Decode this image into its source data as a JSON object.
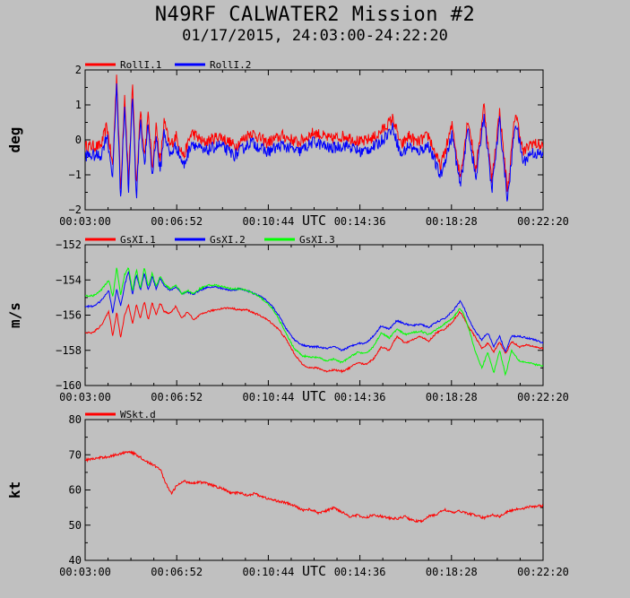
{
  "title": "N49RF CALWATER2 Mission #2",
  "subtitle": "01/17/2015, 24:03:00-24:22:20",
  "chart_data": [
    {
      "type": "line",
      "ylabel": "deg",
      "xlabel": "UTC",
      "ylim": [
        -2,
        2
      ],
      "yticks": [
        "2",
        "1",
        "0",
        "−1",
        "−2"
      ],
      "ytick_values": [
        2,
        1,
        0,
        -1,
        -2
      ],
      "xlim": [
        0,
        1160
      ],
      "xticks": [
        "00:03:00",
        "00:06:52",
        "00:10:44",
        "00:14:36",
        "00:18:28",
        "00:22:20"
      ],
      "grid": false,
      "legend_position": "top-left",
      "noise": 0.17,
      "series": [
        {
          "name": "RollI.1",
          "color": "#ff0000",
          "offset": 0.12,
          "x": [
            0,
            40,
            55,
            70,
            80,
            90,
            100,
            110,
            120,
            130,
            140,
            150,
            160,
            170,
            180,
            190,
            200,
            215,
            230,
            250,
            270,
            300,
            340,
            380,
            420,
            460,
            500,
            540,
            580,
            620,
            660,
            700,
            740,
            780,
            800,
            820,
            840,
            870,
            900,
            930,
            950,
            970,
            990,
            1010,
            1030,
            1050,
            1070,
            1090,
            1110,
            1130,
            1160
          ],
          "y": [
            -0.3,
            -0.3,
            0.3,
            -0.9,
            1.8,
            -1.6,
            1.2,
            -1.3,
            1.4,
            -1.5,
            0.8,
            -0.6,
            0.6,
            -0.9,
            0.3,
            -0.8,
            0.4,
            -0.3,
            0.0,
            -0.6,
            0.1,
            -0.2,
            0.0,
            -0.3,
            0.1,
            -0.2,
            0.0,
            -0.2,
            0.1,
            -0.1,
            0.0,
            -0.2,
            0.0,
            0.5,
            -0.3,
            0.0,
            -0.2,
            0.0,
            -0.9,
            0.3,
            -1.2,
            0.5,
            -1.0,
            0.9,
            -1.3,
            0.7,
            -1.6,
            0.7,
            -0.5,
            -0.2,
            -0.3
          ]
        },
        {
          "name": "RollI.2",
          "color": "#0000ff",
          "offset": -0.15,
          "x": [
            0,
            40,
            55,
            70,
            80,
            90,
            100,
            110,
            120,
            130,
            140,
            150,
            160,
            170,
            180,
            190,
            200,
            215,
            230,
            250,
            270,
            300,
            340,
            380,
            420,
            460,
            500,
            540,
            580,
            620,
            660,
            700,
            740,
            780,
            800,
            820,
            840,
            870,
            900,
            930,
            950,
            970,
            990,
            1010,
            1030,
            1050,
            1070,
            1090,
            1110,
            1130,
            1160
          ],
          "y": [
            -0.3,
            -0.3,
            0.3,
            -0.9,
            1.8,
            -1.6,
            1.2,
            -1.3,
            1.4,
            -1.5,
            0.8,
            -0.6,
            0.6,
            -0.9,
            0.3,
            -0.8,
            0.4,
            -0.3,
            0.0,
            -0.6,
            0.1,
            -0.2,
            0.0,
            -0.3,
            0.1,
            -0.2,
            0.0,
            -0.2,
            0.1,
            -0.1,
            0.0,
            -0.2,
            0.0,
            0.5,
            -0.3,
            0.0,
            -0.2,
            0.0,
            -0.9,
            0.3,
            -1.2,
            0.5,
            -1.0,
            0.9,
            -1.3,
            0.7,
            -1.6,
            0.7,
            -0.5,
            -0.2,
            -0.3
          ]
        }
      ]
    },
    {
      "type": "line",
      "ylabel": "m/s",
      "xlabel": "UTC",
      "ylim": [
        -160,
        -152
      ],
      "yticks": [
        "−152",
        "−154",
        "−156",
        "−158",
        "−160"
      ],
      "ytick_values": [
        -152,
        -154,
        -156,
        -158,
        -160
      ],
      "xlim": [
        0,
        1160
      ],
      "xticks": [
        "00:03:00",
        "00:06:52",
        "00:10:44",
        "00:14:36",
        "00:18:28",
        "00:22:20"
      ],
      "grid": false,
      "legend_position": "top-left",
      "noise": 0.05,
      "series": [
        {
          "name": "GsXI.1",
          "color": "#ff0000",
          "x": [
            0,
            20,
            40,
            60,
            70,
            80,
            90,
            100,
            110,
            120,
            130,
            140,
            150,
            160,
            170,
            180,
            190,
            200,
            215,
            230,
            245,
            260,
            275,
            290,
            310,
            330,
            350,
            370,
            390,
            410,
            430,
            450,
            470,
            490,
            510,
            530,
            550,
            570,
            590,
            610,
            630,
            650,
            670,
            690,
            710,
            730,
            750,
            770,
            790,
            810,
            830,
            850,
            870,
            890,
            910,
            930,
            950,
            960,
            975,
            990,
            1005,
            1020,
            1035,
            1050,
            1065,
            1080,
            1100,
            1120,
            1140,
            1160
          ],
          "y": [
            -157.0,
            -157.0,
            -156.6,
            -155.8,
            -157.2,
            -155.8,
            -157.3,
            -156.0,
            -155.4,
            -156.5,
            -155.4,
            -156.2,
            -155.2,
            -156.3,
            -155.3,
            -156.0,
            -155.3,
            -155.8,
            -155.9,
            -155.5,
            -156.2,
            -155.8,
            -156.3,
            -156.0,
            -155.8,
            -155.7,
            -155.6,
            -155.6,
            -155.7,
            -155.7,
            -155.9,
            -156.1,
            -156.4,
            -156.8,
            -157.4,
            -158.2,
            -158.8,
            -159.0,
            -159.0,
            -159.2,
            -159.1,
            -159.2,
            -159.0,
            -158.7,
            -158.8,
            -158.5,
            -157.8,
            -158.0,
            -157.2,
            -157.6,
            -157.4,
            -157.2,
            -157.5,
            -157.0,
            -156.8,
            -156.4,
            -155.8,
            -156.2,
            -156.8,
            -157.3,
            -157.9,
            -157.6,
            -158.1,
            -157.5,
            -158.2,
            -157.5,
            -157.8,
            -157.7,
            -157.8,
            -157.9
          ]
        },
        {
          "name": "GsXI.2",
          "color": "#0000ff",
          "x": [
            0,
            20,
            40,
            60,
            70,
            80,
            90,
            100,
            110,
            120,
            130,
            140,
            150,
            160,
            170,
            180,
            190,
            200,
            215,
            230,
            245,
            260,
            275,
            290,
            310,
            330,
            350,
            370,
            390,
            410,
            430,
            450,
            470,
            490,
            510,
            530,
            550,
            570,
            590,
            610,
            630,
            650,
            670,
            690,
            710,
            730,
            750,
            770,
            790,
            810,
            830,
            850,
            870,
            890,
            910,
            930,
            950,
            960,
            975,
            990,
            1005,
            1020,
            1035,
            1050,
            1065,
            1080,
            1100,
            1120,
            1140,
            1160
          ],
          "y": [
            -155.5,
            -155.5,
            -155.2,
            -154.6,
            -155.9,
            -154.5,
            -155.5,
            -154.3,
            -153.5,
            -154.8,
            -153.7,
            -154.6,
            -153.6,
            -154.6,
            -153.8,
            -154.5,
            -153.9,
            -154.3,
            -154.6,
            -154.4,
            -154.8,
            -154.7,
            -154.8,
            -154.6,
            -154.4,
            -154.4,
            -154.5,
            -154.6,
            -154.5,
            -154.6,
            -154.8,
            -155.0,
            -155.4,
            -156.0,
            -156.8,
            -157.4,
            -157.7,
            -157.8,
            -157.8,
            -157.9,
            -157.8,
            -158.0,
            -157.8,
            -157.6,
            -157.6,
            -157.2,
            -156.6,
            -156.8,
            -156.3,
            -156.5,
            -156.6,
            -156.5,
            -156.7,
            -156.4,
            -156.2,
            -155.8,
            -155.2,
            -155.6,
            -156.4,
            -157.0,
            -157.4,
            -157.0,
            -157.8,
            -157.2,
            -158.1,
            -157.2,
            -157.2,
            -157.3,
            -157.4,
            -157.6
          ]
        },
        {
          "name": "GsXI.3",
          "color": "#00ff00",
          "x": [
            0,
            20,
            40,
            60,
            70,
            80,
            90,
            100,
            110,
            120,
            130,
            140,
            150,
            160,
            170,
            180,
            190,
            200,
            215,
            230,
            245,
            260,
            275,
            290,
            310,
            330,
            350,
            370,
            390,
            410,
            430,
            450,
            470,
            490,
            510,
            530,
            550,
            570,
            590,
            610,
            630,
            650,
            670,
            690,
            710,
            730,
            750,
            770,
            790,
            810,
            830,
            850,
            870,
            890,
            910,
            930,
            950,
            960,
            975,
            990,
            1005,
            1020,
            1035,
            1050,
            1065,
            1080,
            1100,
            1120,
            1140,
            1160
          ],
          "y": [
            -154.9,
            -154.9,
            -154.6,
            -154.0,
            -155.0,
            -153.3,
            -154.9,
            -153.7,
            -153.3,
            -154.6,
            -153.4,
            -154.5,
            -153.3,
            -154.4,
            -153.6,
            -154.4,
            -153.8,
            -154.2,
            -154.5,
            -154.3,
            -154.8,
            -154.6,
            -154.8,
            -154.5,
            -154.3,
            -154.3,
            -154.4,
            -154.5,
            -154.5,
            -154.6,
            -154.8,
            -155.1,
            -155.5,
            -156.2,
            -157.1,
            -157.9,
            -158.3,
            -158.4,
            -158.4,
            -158.6,
            -158.5,
            -158.7,
            -158.4,
            -158.1,
            -158.2,
            -157.8,
            -157.0,
            -157.3,
            -156.8,
            -157.1,
            -157.0,
            -156.9,
            -157.1,
            -156.8,
            -156.5,
            -156.2,
            -155.6,
            -156.0,
            -157.0,
            -158.2,
            -159.0,
            -158.1,
            -159.3,
            -158.0,
            -159.4,
            -158.0,
            -158.6,
            -158.7,
            -158.8,
            -158.9
          ]
        }
      ]
    },
    {
      "type": "line",
      "ylabel": "kt",
      "xlabel": "UTC",
      "ylim": [
        40,
        80
      ],
      "yticks": [
        "80",
        "70",
        "60",
        "50",
        "40"
      ],
      "ytick_values": [
        80,
        70,
        60,
        50,
        40
      ],
      "xlim": [
        0,
        1160
      ],
      "xticks": [
        "00:03:00",
        "00:06:52",
        "00:10:44",
        "00:14:36",
        "00:18:28",
        "00:22:20"
      ],
      "grid": false,
      "legend_position": "top-left",
      "noise": 0.35,
      "series": [
        {
          "name": "WSkt.d",
          "color": "#ff0000",
          "x": [
            0,
            30,
            60,
            90,
            110,
            130,
            150,
            170,
            190,
            200,
            210,
            220,
            230,
            250,
            270,
            290,
            310,
            330,
            350,
            370,
            390,
            410,
            430,
            450,
            470,
            490,
            510,
            530,
            550,
            570,
            590,
            610,
            630,
            650,
            670,
            690,
            710,
            730,
            750,
            770,
            790,
            810,
            830,
            850,
            870,
            890,
            910,
            930,
            950,
            970,
            990,
            1010,
            1030,
            1050,
            1070,
            1090,
            1110,
            1130,
            1160
          ],
          "y": [
            68.5,
            69.0,
            69.5,
            70.3,
            71.0,
            70.0,
            68.5,
            67.2,
            66.0,
            63.0,
            60.5,
            59.0,
            61.0,
            62.5,
            62.0,
            62.3,
            61.8,
            61.0,
            60.3,
            59.0,
            59.3,
            58.5,
            59.0,
            58.0,
            57.3,
            56.8,
            56.3,
            55.5,
            54.3,
            54.5,
            53.5,
            54.0,
            55.0,
            53.8,
            52.5,
            52.8,
            52.0,
            53.0,
            52.5,
            52.0,
            51.8,
            52.5,
            51.3,
            51.0,
            52.5,
            53.0,
            54.5,
            53.5,
            54.0,
            53.3,
            52.8,
            52.0,
            53.0,
            52.5,
            53.8,
            54.5,
            54.8,
            55.3,
            55.5
          ]
        }
      ]
    }
  ]
}
